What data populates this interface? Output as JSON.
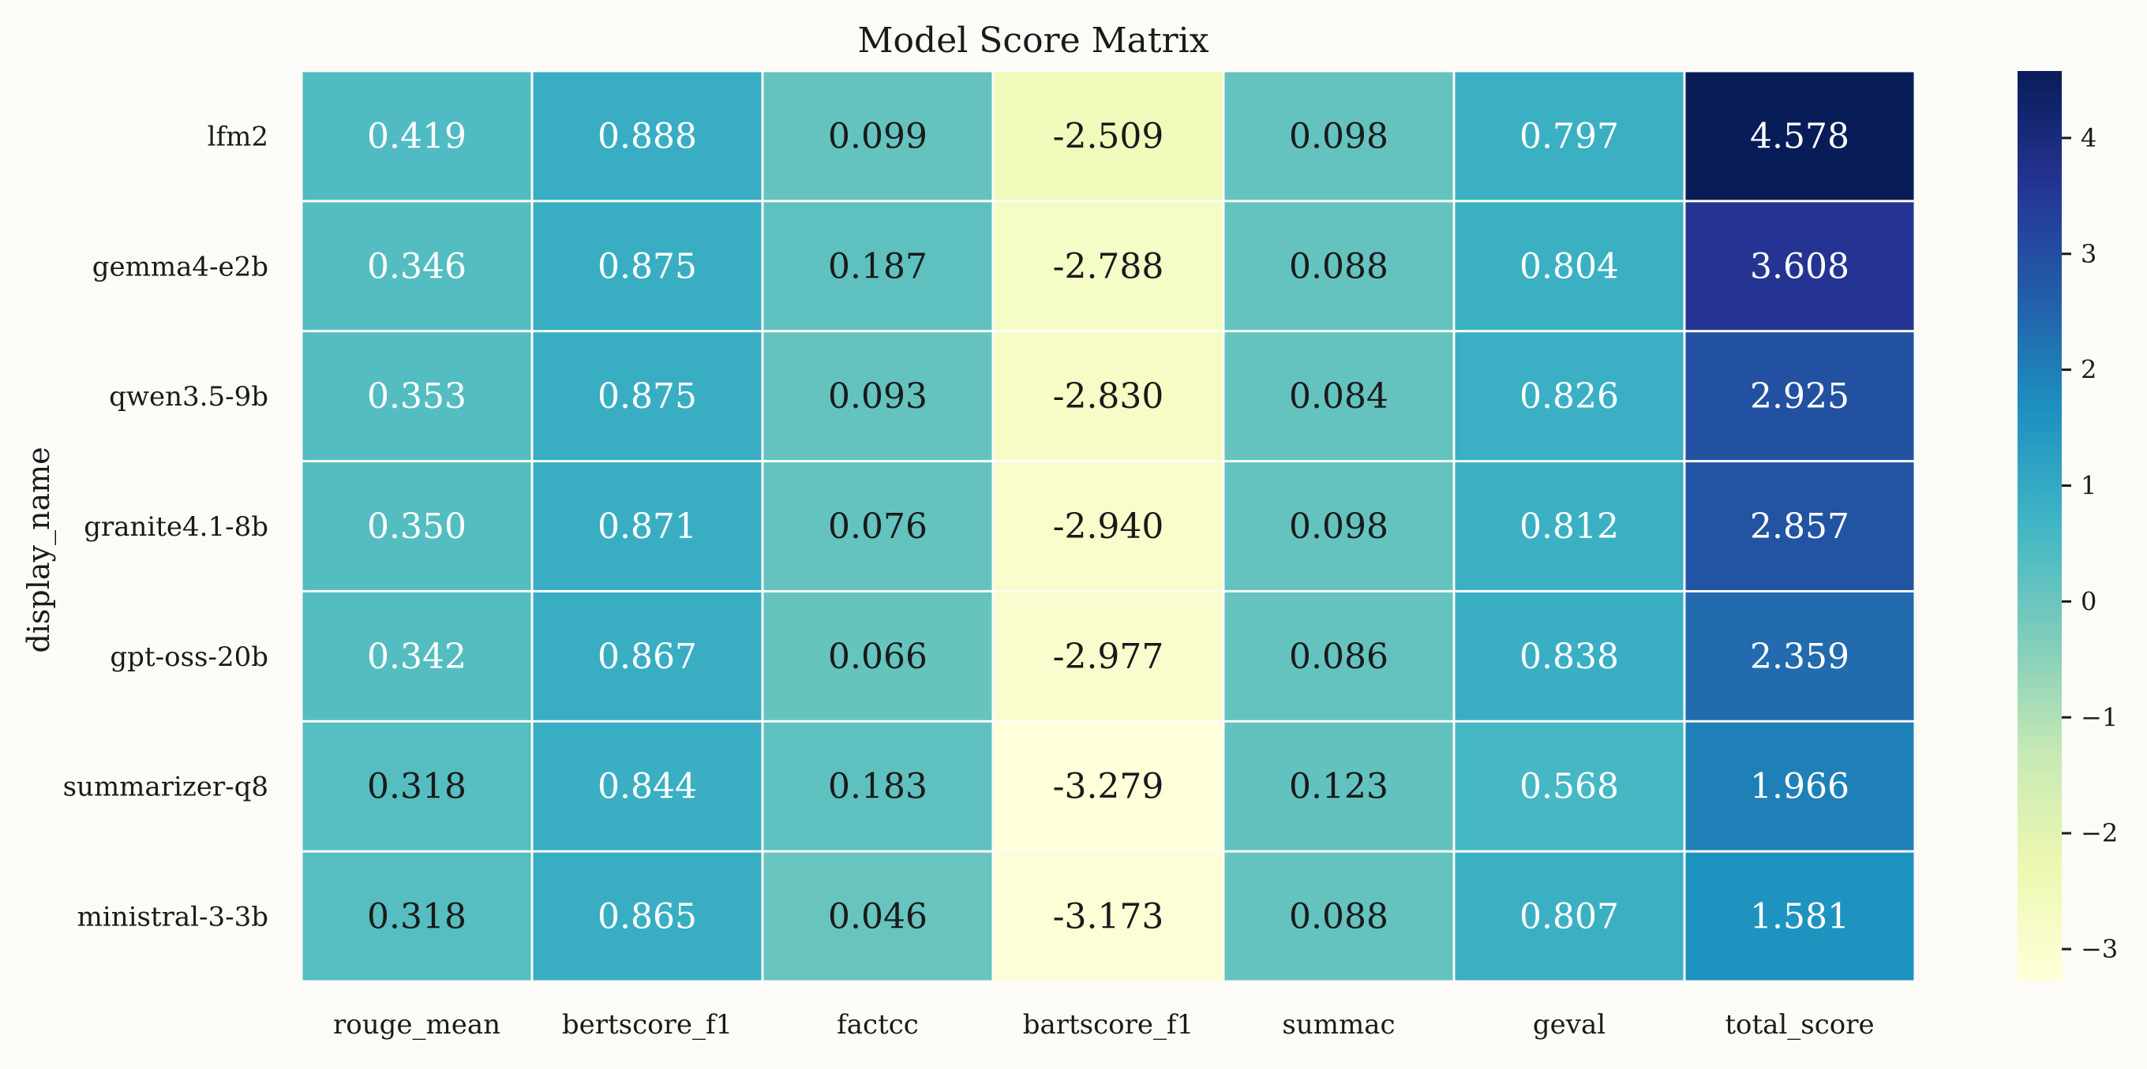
{
  "chart_data": {
    "type": "heatmap",
    "title": "Model Score Matrix",
    "xlabel": "",
    "ylabel": "display_name",
    "columns": [
      "rouge_mean",
      "bertscore_f1",
      "factcc",
      "bartscore_f1",
      "summac",
      "geval",
      "total_score"
    ],
    "rows": [
      "lfm2",
      "gemma4-e2b",
      "qwen3.5-9b",
      "granite4.1-8b",
      "gpt-oss-20b",
      "summarizer-q8",
      "ministral-3-3b"
    ],
    "values": [
      [
        0.419,
        0.888,
        0.099,
        -2.509,
        0.098,
        0.797,
        4.578
      ],
      [
        0.346,
        0.875,
        0.187,
        -2.788,
        0.088,
        0.804,
        3.608
      ],
      [
        0.353,
        0.875,
        0.093,
        -2.83,
        0.084,
        0.826,
        2.925
      ],
      [
        0.35,
        0.871,
        0.076,
        -2.94,
        0.098,
        0.812,
        2.857
      ],
      [
        0.342,
        0.867,
        0.066,
        -2.977,
        0.086,
        0.838,
        2.359
      ],
      [
        0.318,
        0.844,
        0.183,
        -3.279,
        0.123,
        0.568,
        1.966
      ],
      [
        0.318,
        0.865,
        0.046,
        -3.173,
        0.088,
        0.807,
        1.581
      ]
    ],
    "value_labels": [
      [
        "0.419",
        "0.888",
        "0.099",
        "-2.509",
        "0.098",
        "0.797",
        "4.578"
      ],
      [
        "0.346",
        "0.875",
        "0.187",
        "-2.788",
        "0.088",
        "0.804",
        "3.608"
      ],
      [
        "0.353",
        "0.875",
        "0.093",
        "-2.830",
        "0.084",
        "0.826",
        "2.925"
      ],
      [
        "0.350",
        "0.871",
        "0.076",
        "-2.940",
        "0.098",
        "0.812",
        "2.857"
      ],
      [
        "0.342",
        "0.867",
        "0.066",
        "-2.977",
        "0.086",
        "0.838",
        "2.359"
      ],
      [
        "0.318",
        "0.844",
        "0.183",
        "-3.279",
        "0.123",
        "0.568",
        "1.966"
      ],
      [
        "0.318",
        "0.865",
        "0.046",
        "-3.173",
        "0.088",
        "0.807",
        "1.581"
      ]
    ],
    "colormap": "YlGnBu",
    "vmin": -3.279,
    "vmax": 4.578,
    "colorbar": {
      "ticks": [
        4,
        3,
        2,
        1,
        0,
        -1,
        -2,
        -3
      ],
      "tick_labels": [
        "4",
        "3",
        "2",
        "1",
        "0",
        "−1",
        "−2",
        "−3"
      ],
      "placement": "right"
    },
    "annotate_cells": true,
    "cell_separators": "white",
    "background": "#fcfbf7"
  }
}
